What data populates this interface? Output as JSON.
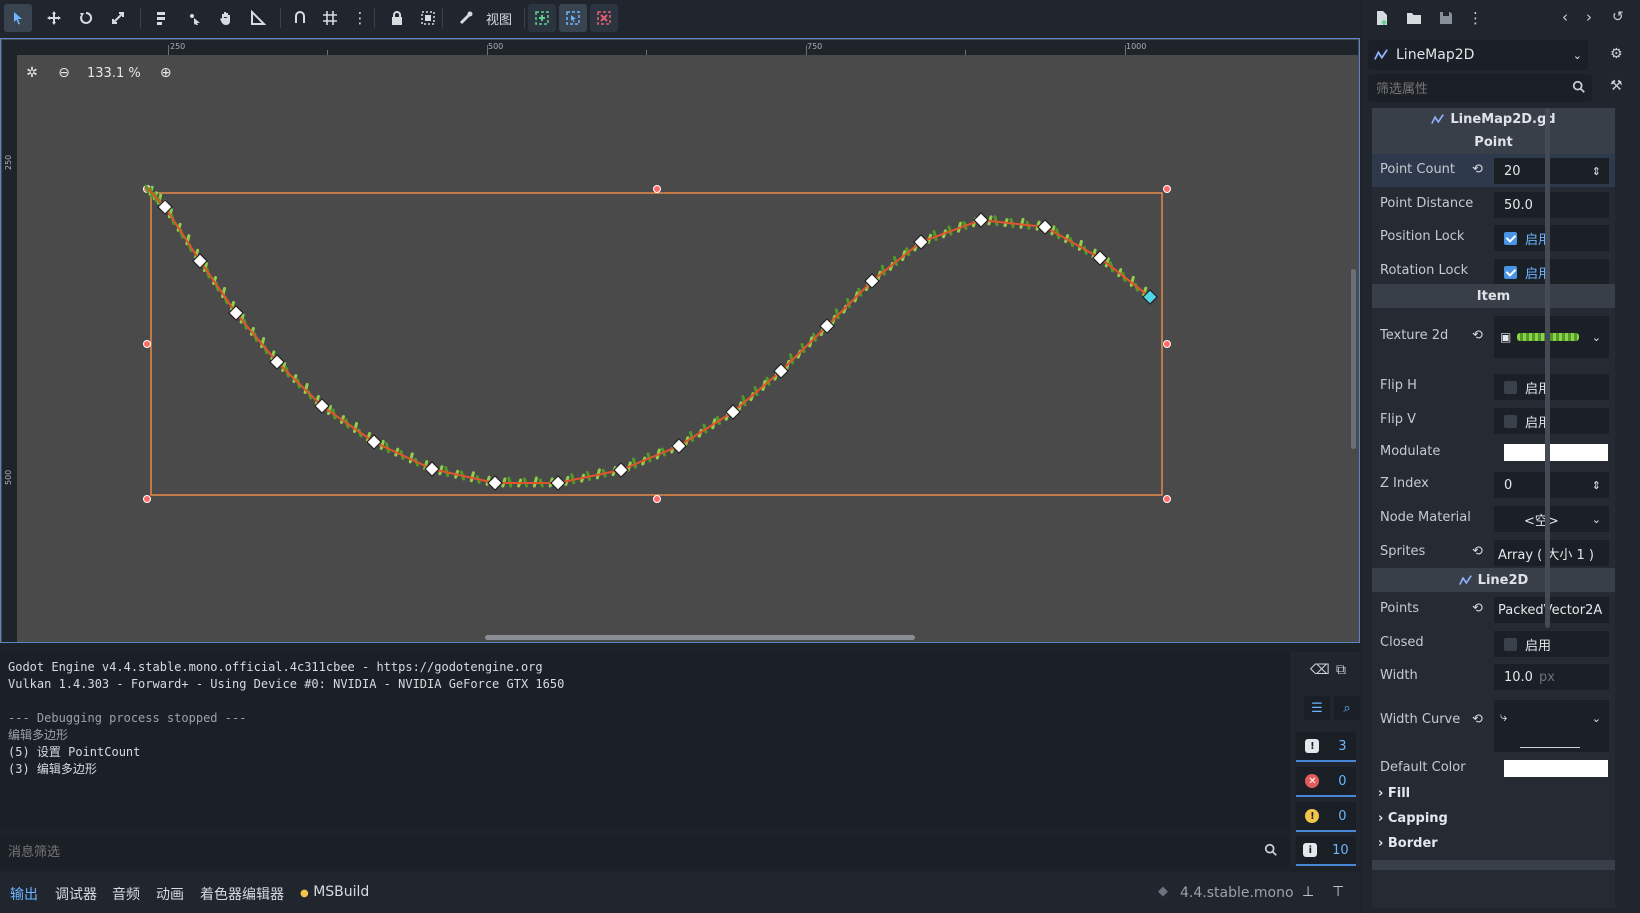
{
  "toolbar": {
    "view_label": "视图"
  },
  "viewport": {
    "zoom_value": "133.1 %",
    "ruler_top_ticks": [
      "250",
      "500",
      "750",
      "1000"
    ],
    "ruler_left_ticks": [
      "250",
      "500"
    ]
  },
  "console": {
    "lines": [
      "Godot Engine v4.4.stable.mono.official.4c311cbee - https://godotengine.org",
      "Vulkan 1.4.303 - Forward+ - Using Device #0: NVIDIA - NVIDIA GeForce GTX 1650",
      "",
      "--- Debugging process stopped ---",
      "编辑多边形",
      "(5) 设置 PointCount",
      "(3) 编辑多边形"
    ],
    "filter_placeholder": "消息筛选",
    "counts": {
      "messages": "3",
      "errors": "0",
      "warnings": "0",
      "info": "10"
    }
  },
  "bottom_tabs": [
    "输出",
    "调试器",
    "音频",
    "动画",
    "着色器编辑器",
    "MSBuild"
  ],
  "version_label": "4.4.stable.mono",
  "inspector": {
    "node_name": "LineMap2D",
    "filter_placeholder": "筛选属性",
    "script_name": "LineMap2D.gd",
    "section_point": "Point",
    "point_count_label": "Point Count",
    "point_count_value": "20",
    "point_distance_label": "Point Distance",
    "point_distance_value": "50.0",
    "position_lock_label": "Position Lock",
    "rotation_lock_label": "Rotation Lock",
    "enable_label": "启用",
    "section_item": "Item",
    "texture_label": "Texture 2d",
    "flip_h_label": "Flip H",
    "flip_v_label": "Flip V",
    "modulate_label": "Modulate",
    "z_index_label": "Z Index",
    "z_index_value": "0",
    "node_material_label": "Node Material",
    "node_material_value": "<空>",
    "sprites_label": "Sprites",
    "sprites_value": "Array ( 大小 1 )",
    "section_line2d": "Line2D",
    "points_label": "Points",
    "points_value": "PackedVector2A",
    "closed_label": "Closed",
    "width_label": "Width",
    "width_value": "10.0",
    "width_unit": "px",
    "width_curve_label": "Width Curve",
    "default_color_label": "Default Color",
    "group_fill": "Fill",
    "group_capping": "Capping",
    "group_border": "Border"
  },
  "colors": {
    "accent": "#6cb6ff",
    "selection_rect": "#e88a4a",
    "curve": "#e0542c",
    "grass": "#7fbf3a"
  }
}
